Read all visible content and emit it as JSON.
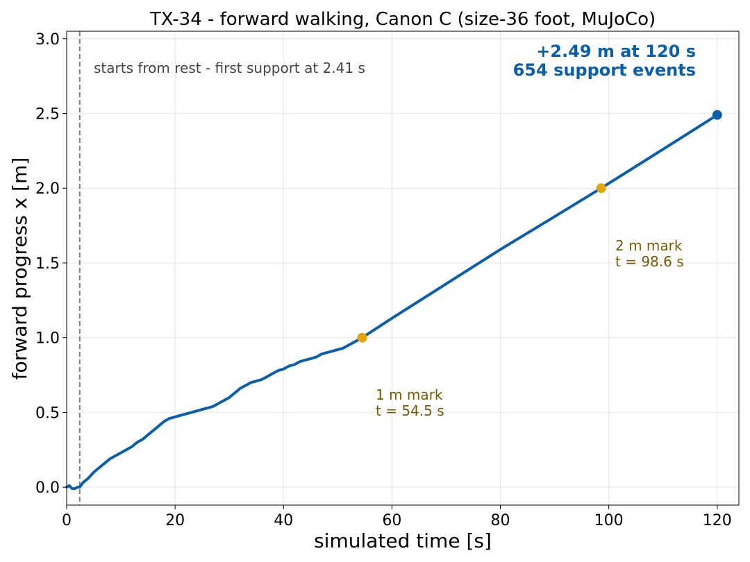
{
  "chart_data": {
    "type": "line",
    "title": "TX-34 - forward walking, Canon C (size-36 foot, MuJoCo)",
    "xlabel": "simulated time [s]",
    "ylabel": "forward progress x [m]",
    "xlim": [
      0,
      124
    ],
    "ylim": [
      -0.12,
      3.05
    ],
    "xticks": [
      0,
      20,
      40,
      60,
      80,
      100,
      120
    ],
    "yticks": [
      0.0,
      0.5,
      1.0,
      1.5,
      2.0,
      2.5,
      3.0
    ],
    "xtick_labels": [
      "0",
      "20",
      "40",
      "60",
      "80",
      "100",
      "120"
    ],
    "ytick_labels": [
      "0.0",
      "0.5",
      "1.0",
      "1.5",
      "2.0",
      "2.5",
      "3.0"
    ],
    "grid": true,
    "series": [
      {
        "color": "#0a5fad",
        "x": [
          0,
          0.5,
          1,
          1.5,
          2,
          2.41,
          3,
          4,
          5,
          6,
          7,
          8,
          9,
          10,
          11,
          12,
          13,
          14,
          15,
          16,
          17,
          18,
          19,
          20,
          21,
          22,
          23,
          24,
          25,
          26,
          27,
          28,
          29,
          30,
          31,
          32,
          33,
          34,
          35,
          36,
          37,
          38,
          39,
          40,
          41,
          42,
          43,
          44,
          45,
          46,
          47,
          48,
          49,
          50,
          51,
          52,
          53,
          54.5,
          60,
          70,
          80,
          90,
          98.6,
          110,
          120
        ],
        "y": [
          0.0,
          0.01,
          -0.01,
          -0.01,
          0.0,
          0.0,
          0.03,
          0.06,
          0.1,
          0.13,
          0.16,
          0.19,
          0.21,
          0.23,
          0.25,
          0.27,
          0.3,
          0.32,
          0.35,
          0.38,
          0.41,
          0.44,
          0.46,
          0.47,
          0.48,
          0.49,
          0.5,
          0.51,
          0.52,
          0.53,
          0.54,
          0.56,
          0.58,
          0.6,
          0.63,
          0.66,
          0.68,
          0.7,
          0.71,
          0.72,
          0.74,
          0.76,
          0.78,
          0.79,
          0.81,
          0.82,
          0.84,
          0.85,
          0.86,
          0.87,
          0.89,
          0.9,
          0.91,
          0.92,
          0.93,
          0.95,
          0.97,
          1.0,
          1.13,
          1.36,
          1.59,
          1.81,
          2.0,
          2.26,
          2.49
        ]
      }
    ],
    "start_line_x": 2.41,
    "markers": [
      {
        "x": 54.5,
        "y": 1.0,
        "color": "#e2a50c"
      },
      {
        "x": 98.6,
        "y": 2.0,
        "color": "#e2a50c"
      },
      {
        "x": 120,
        "y": 2.49,
        "color": "#0a5fad"
      }
    ],
    "annotations": {
      "start_note": "starts from rest - first support at 2.41 s",
      "summary_line1": "+2.49 m at 120 s",
      "summary_line2": "654 support events",
      "mark1_line1": "1 m mark",
      "mark1_line2": "t = 54.5 s",
      "mark2_line1": "2 m mark",
      "mark2_line2": "t = 98.6 s"
    },
    "colors": {
      "line": "#0a5fad",
      "mark": "#e2a50c",
      "mark_text": "#7a5a00",
      "note_text": "#444444",
      "summary_text": "#0a5fad",
      "start_line": "#808080",
      "grid": "#e6e6e6"
    }
  }
}
